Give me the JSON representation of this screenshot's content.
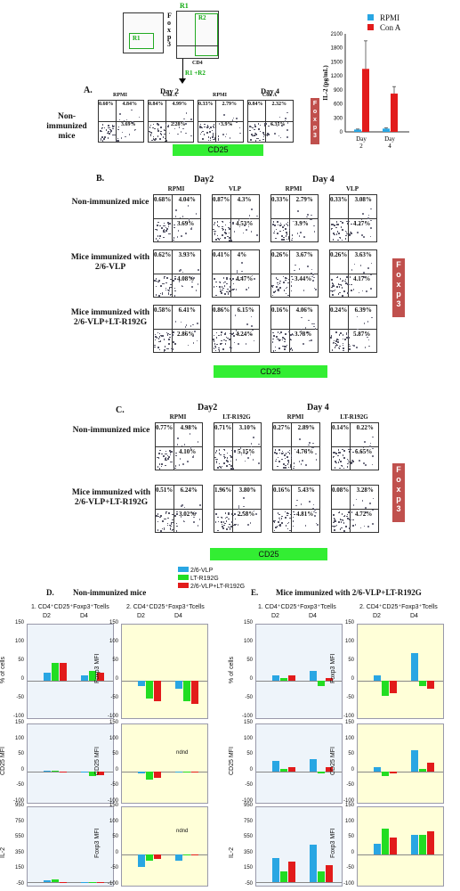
{
  "top": {
    "r1": "R1",
    "r2": "R2",
    "r1r2": "R1 +R2",
    "cd4": "CD4",
    "foxp3_vertical": [
      "F",
      "o",
      "x",
      "p",
      "3"
    ]
  },
  "panelA": {
    "letter": "A.",
    "day2": "Day 2",
    "day4": "Day 4",
    "cols": [
      "RPMI",
      "Con A",
      "RPMI",
      "Con A"
    ],
    "row_label": "Non-immunized mice",
    "tl": [
      "0.60%",
      "0.84%",
      "0.33%",
      "0.84%"
    ],
    "tr": [
      "4.84%",
      "4.99%",
      "2.79%",
      "2.32%"
    ],
    "br": [
      "3.69%",
      "2.28%",
      "3.9%",
      "6.31%"
    ],
    "cd25": "CD25",
    "foxp3": [
      "F",
      "o",
      "x",
      "p",
      "3"
    ]
  },
  "il2chart": {
    "ylabel": "IL-2 (pg/mL)",
    "legend": [
      {
        "name": "RPMI",
        "color": "#29a6e3"
      },
      {
        "name": "Con A",
        "color": "#e21b1b"
      }
    ],
    "yticks": [
      "2100",
      "1800",
      "1500",
      "1200",
      "900",
      "600",
      "300",
      "0"
    ]
  },
  "chart_data": {
    "type": "bar",
    "categories": [
      "Day 2",
      "Day 4"
    ],
    "series": [
      {
        "name": "RPMI",
        "values": [
          50,
          70
        ],
        "err": [
          10,
          15
        ],
        "color": "#29a6e3"
      },
      {
        "name": "Con A",
        "values": [
          1350,
          820
        ],
        "err": [
          600,
          150
        ],
        "color": "#e21b1b"
      }
    ],
    "ylabel": "IL-2 (pg/mL)",
    "ylim": [
      0,
      2100
    ]
  },
  "panelB": {
    "letter": "B.",
    "day2": "Day2",
    "day4": "Day 4",
    "cols": [
      "RPMI",
      "VLP",
      "RPMI",
      "VLP"
    ],
    "rows": [
      {
        "label": "Non-immunized mice",
        "tl": [
          "0.68%",
          "0.87%",
          "0.33%",
          "0.33%"
        ],
        "tr": [
          "4.04%",
          "4.3%",
          "2.79%",
          "3.08%"
        ],
        "br": [
          "3.69%",
          "4.53%",
          "3.9%",
          "4.27%"
        ]
      },
      {
        "label": "Mice immunized with 2/6-VLP",
        "tl": [
          "0.62%",
          "0.41%",
          "0.26%",
          "0.26%"
        ],
        "tr": [
          "3.93%",
          "4%",
          "3.67%",
          "3.63%"
        ],
        "br": [
          "4.08%",
          "4.47%",
          "3.44%",
          "4.17%"
        ]
      },
      {
        "label": "Mice immunized with 2/6-VLP+LT-R192G",
        "tl": [
          "0.58%",
          "0.86%",
          "0.16%",
          "0.24%"
        ],
        "tr": [
          "6.41%",
          "6.15%",
          "4.06%",
          "6.39%"
        ],
        "br": [
          "2.86%",
          "4.24%",
          "3.78%",
          "5.87%"
        ]
      }
    ],
    "cd25": "CD25",
    "foxp3": [
      "F",
      "o",
      "x",
      "p",
      "3"
    ]
  },
  "panelC": {
    "letter": "C.",
    "day2": "Day2",
    "day4": "Day 4",
    "cols": [
      "RPMI",
      "LT-R192G",
      "RPMI",
      "LT-R192G"
    ],
    "rows": [
      {
        "label": "Non-immunized mice",
        "tl": [
          "0.77%",
          "0.71%",
          "0.27%",
          "0.14%"
        ],
        "tr": [
          "4.98%",
          "3.10%",
          "2.89%",
          "0.22%"
        ],
        "br": [
          "4.10%",
          "5.15%",
          "4.76%",
          "6.65%"
        ]
      },
      {
        "label": "Mice immunized with 2/6-VLP+LT-R192G",
        "tl": [
          "0.51%",
          "1.96%",
          "0.16%",
          "0.08%"
        ],
        "tr": [
          "6.24%",
          "3.80%",
          "5.43%",
          "3.28%"
        ],
        "br": [
          "3.02%",
          "2.58%",
          "4.81%",
          "4.72%"
        ]
      }
    ],
    "cd25": "CD25",
    "foxp3": [
      "F",
      "o",
      "x",
      "p",
      "3"
    ]
  },
  "legend2": [
    {
      "name": "2/6-VLP",
      "color": "#29a6e3"
    },
    {
      "name": "LT-R192G",
      "color": "#22dd22"
    },
    {
      "name": "2/6-VLP+LT-R192G",
      "color": "#e21b1b"
    }
  ],
  "panelD": {
    "letter": "D.",
    "title": "Non-immunized mice",
    "sub1": "1. CD4⁺CD25⁺Foxp3⁺Tcells",
    "sub2": "2. CD4⁺CD25⁺Foxp3⁺Tcells",
    "d2": "D2",
    "d4": "D4",
    "ylabels": [
      "% of cells",
      "CD25 MFI",
      "IL-2"
    ],
    "ylabel2": "Foxp3 MFI",
    "ndnd": "ndnd"
  },
  "panelE": {
    "letter": "E.",
    "title": "Mice immunized with 2/6-VLP+LT-R192G",
    "sub1": "1. CD4⁺CD25⁺Foxp3⁺Tcells",
    "sub2": "2. CD4⁺CD25⁺Foxp3⁺Tcells",
    "d2": "D2",
    "d4": "D4",
    "ylabels": [
      "% of cells",
      "CD25 MFI",
      "IL-2"
    ],
    "ylabel2": "Foxp3 MFI"
  },
  "ticks_150": [
    "150",
    "100",
    "50",
    "0",
    "-50",
    "-100"
  ],
  "ticks_il2": [
    "950",
    "750",
    "550",
    "350",
    "150",
    "-50"
  ]
}
